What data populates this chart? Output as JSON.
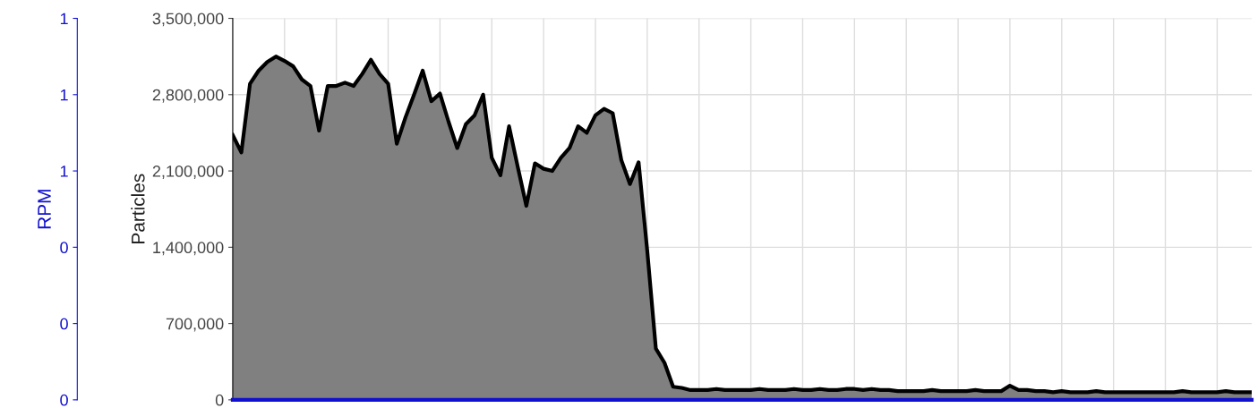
{
  "chart_data": {
    "type": "area",
    "ylabel": "Particles",
    "y2label": "RPM",
    "categories": [
      null,
      null,
      null,
      null,
      null,
      null,
      null,
      null,
      null,
      null,
      null,
      null,
      null,
      null,
      null,
      null,
      null,
      null,
      null,
      null,
      null,
      null,
      null,
      null,
      null,
      null,
      null,
      null,
      null,
      null,
      null,
      null,
      null,
      null,
      null,
      null,
      null,
      null,
      null,
      null,
      null,
      null,
      null,
      null,
      null,
      null,
      null,
      null,
      null,
      null,
      null,
      null,
      null,
      null,
      null,
      null,
      null,
      null,
      null,
      null,
      null,
      null,
      null,
      null,
      null,
      null,
      null,
      null,
      null,
      null,
      null,
      null,
      null,
      null,
      null,
      null,
      null,
      null,
      null,
      null,
      null,
      null,
      null,
      null,
      null,
      null,
      null,
      null,
      null,
      null,
      null,
      null,
      null,
      null,
      null,
      null,
      null,
      null,
      null,
      null,
      null,
      null,
      null,
      null,
      null,
      null,
      null,
      null,
      null,
      null,
      null,
      null,
      null,
      null,
      null,
      null,
      null,
      null,
      null
    ],
    "series": [
      {
        "name": null,
        "color": "#808080",
        "values": [
          2430000,
          2270000,
          2900000,
          3020000,
          3100000,
          3150000,
          3110000,
          3060000,
          2940000,
          2880000,
          2470000,
          2880000,
          2880000,
          2910000,
          2880000,
          2990000,
          3120000,
          2990000,
          2900000,
          2350000,
          2590000,
          2800000,
          3020000,
          2740000,
          2810000,
          2550000,
          2310000,
          2530000,
          2610000,
          2800000,
          2220000,
          2060000,
          2510000,
          2140000,
          1780000,
          2170000,
          2120000,
          2100000,
          2220000,
          2310000,
          2510000,
          2450000,
          2610000,
          2670000,
          2630000,
          2200000,
          1980000,
          2180000,
          1370000,
          470000,
          340000,
          120000,
          110000,
          90000,
          90000,
          90000,
          100000,
          90000,
          90000,
          90000,
          90000,
          100000,
          90000,
          90000,
          90000,
          100000,
          90000,
          90000,
          100000,
          90000,
          90000,
          100000,
          100000,
          90000,
          100000,
          90000,
          90000,
          80000,
          80000,
          80000,
          80000,
          90000,
          80000,
          80000,
          80000,
          80000,
          90000,
          80000,
          80000,
          80000,
          130000,
          90000,
          90000,
          80000,
          80000,
          70000,
          80000,
          70000,
          70000,
          70000,
          80000,
          70000,
          70000,
          70000,
          70000,
          70000,
          70000,
          70000,
          70000,
          70000,
          80000,
          70000,
          70000,
          70000,
          70000,
          80000,
          70000,
          70000,
          70000
        ]
      },
      {
        "name": null,
        "type": "line",
        "axis": "y2",
        "color": "#1010d0",
        "values": [
          0,
          0,
          0,
          0,
          0,
          0,
          0,
          0,
          0,
          0,
          0,
          0,
          0,
          0,
          0,
          0,
          0,
          0,
          0,
          0,
          0,
          0,
          0,
          0,
          0,
          0,
          0,
          0,
          0,
          0,
          0,
          0,
          0,
          0,
          0,
          0,
          0,
          0,
          0,
          0,
          0,
          0,
          0,
          0,
          0,
          0,
          0,
          0,
          0,
          0,
          0,
          0,
          0,
          0,
          0,
          0,
          0,
          0,
          0,
          0,
          0,
          0,
          0,
          0,
          0,
          0,
          0,
          0,
          0,
          0,
          0,
          0,
          0,
          0,
          0,
          0,
          0,
          0,
          0,
          0,
          0,
          0,
          0,
          0,
          0,
          0,
          0,
          0,
          0,
          0,
          0,
          0,
          0,
          0,
          0,
          0,
          0,
          0,
          0,
          0,
          0,
          0,
          0,
          0,
          0,
          0,
          0,
          0,
          0,
          0,
          0,
          0,
          0,
          0,
          0,
          0,
          0,
          0,
          0
        ]
      }
    ],
    "ylim": [
      0,
      3500000
    ],
    "yticks": [
      {
        "value": 0,
        "label": "0"
      },
      {
        "value": 700000,
        "label": "700,000"
      },
      {
        "value": 1400000,
        "label": "1,400,000"
      },
      {
        "value": 2100000,
        "label": "2,100,000"
      },
      {
        "value": 2800000,
        "label": "2,800,000"
      },
      {
        "value": 3500000,
        "label": "3,500,000"
      }
    ],
    "y2lim": [
      0,
      1
    ],
    "y2ticks": [
      0,
      {
        "value": 0.2,
        "label": "0"
      },
      {
        "value": 0.4,
        "label": "0"
      },
      {
        "value": 0.6,
        "label": "1"
      },
      {
        "value": 0.8,
        "label": "1"
      },
      1
    ],
    "tick_labels": "y",
    "grid": true,
    "legend": false
  }
}
